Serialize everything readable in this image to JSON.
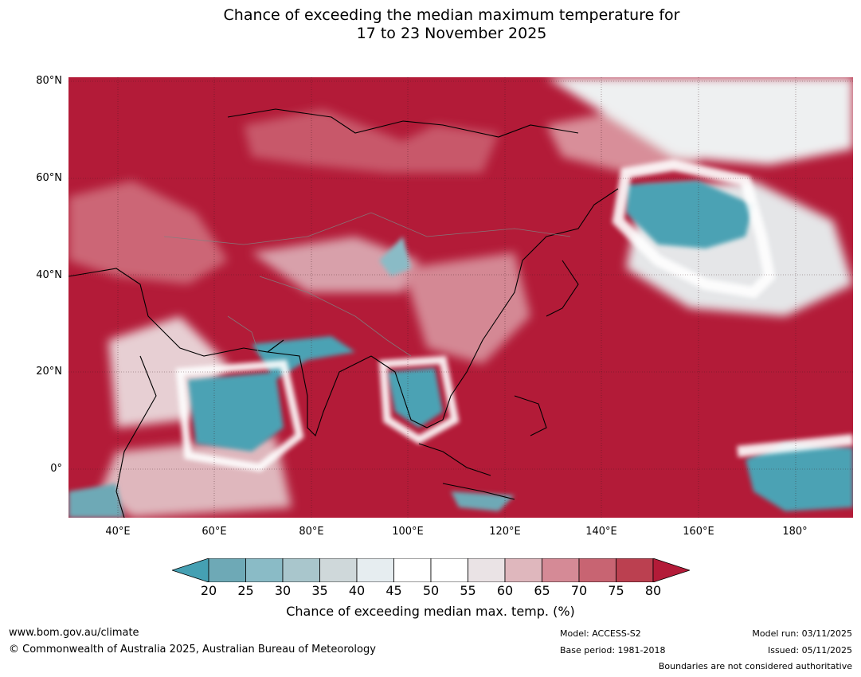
{
  "title": {
    "line1": "Chance of exceeding the median maximum temperature for",
    "line2": "17 to 23 November 2025"
  },
  "map": {
    "lat_labels": [
      "80°N",
      "60°N",
      "40°N",
      "20°N",
      "0°"
    ],
    "lon_labels": [
      "40°E",
      "60°E",
      "80°E",
      "100°E",
      "120°E",
      "140°E",
      "160°E",
      "180°"
    ],
    "regions": {
      "india_below_median": "India / Bay of Bengal area — low chance (~20-35%)",
      "arabian_sea_below_median": "Arabian Sea — low chance",
      "indochina_below_median": "Indochina — low chance",
      "kamchatka_below_median": "Sea of Okhotsk / Kamchatka — low chance",
      "central_pacific_below_median": "Equatorial central Pacific — low chance"
    }
  },
  "colorbar": {
    "ticks": [
      "20",
      "25",
      "30",
      "35",
      "40",
      "45",
      "50",
      "55",
      "60",
      "65",
      "70",
      "75",
      "80"
    ],
    "label": "Chance of exceeding median max. temp. (%)",
    "colors": [
      "#45a0b3",
      "#6ea9b6",
      "#8abbc6",
      "#a9c6cc",
      "#cfd8da",
      "#e6edf0",
      "#ffffff",
      "#ffffff",
      "#eae3e5",
      "#dfb7bd",
      "#d58a96",
      "#c86472",
      "#bb4050",
      "#b31b38"
    ]
  },
  "footer": {
    "website": "www.bom.gov.au/climate",
    "copyright": "© Commonwealth of Australia 2025, Australian Bureau of Meteorology",
    "model": "Model: ACCESS-S2",
    "base_period": "Base period: 1981-2018",
    "model_run": "Model run: 03/11/2025",
    "issued": "Issued: 05/11/2025",
    "disclaimer": "Boundaries are not considered authoritative"
  }
}
